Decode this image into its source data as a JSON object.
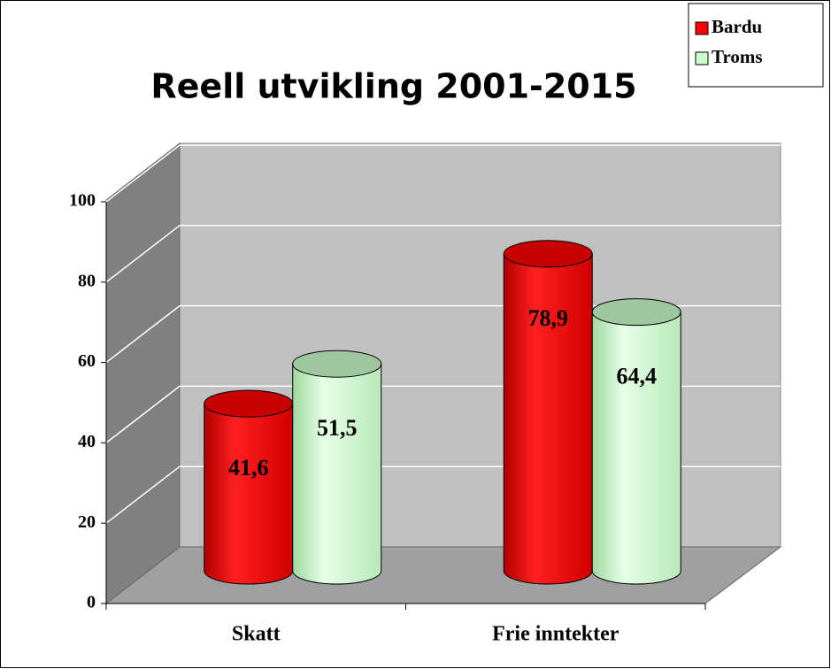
{
  "chart_data": {
    "type": "bar3d",
    "title": "Reell utvikling 2001-2015",
    "categories": [
      "Skatt",
      "Frie inntekter"
    ],
    "series": [
      {
        "name": "Bardu",
        "color": "#ff0000",
        "values": [
          41.6,
          78.9
        ],
        "value_labels": [
          "41,6",
          "78,9"
        ]
      },
      {
        "name": "Troms",
        "color": "#ccffcc",
        "values": [
          51.5,
          64.4
        ],
        "value_labels": [
          "51,5",
          "64,4"
        ]
      }
    ],
    "ylim": [
      0,
      100
    ],
    "yticks": [
      0,
      20,
      40,
      60,
      80,
      100
    ],
    "grid": true,
    "legend": "top-right"
  }
}
